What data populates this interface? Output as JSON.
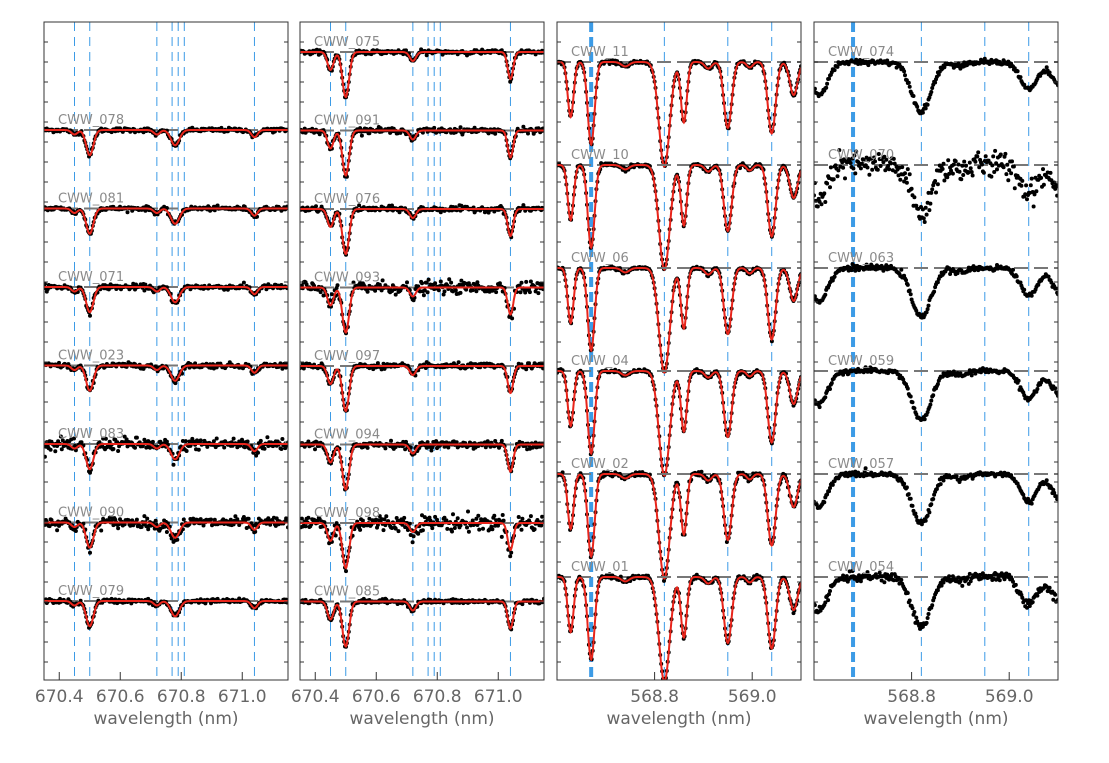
{
  "colors": {
    "frame": "#333333",
    "model": "#e8251b",
    "data": "#000000",
    "continuum": "#777777",
    "line_marker": "#3c9be6"
  },
  "chart_data": [
    {
      "type": "line",
      "xlabel": "wavelength (nm)",
      "xlim": [
        670.35,
        671.15
      ],
      "xticks": [
        670.4,
        670.6,
        670.8,
        671.0
      ],
      "xtick_labels": [
        "670.4",
        "670.6",
        "670.8",
        "671.0"
      ],
      "line_markers_nm": [
        670.45,
        670.5,
        670.72,
        670.77,
        670.79,
        670.81,
        671.04
      ],
      "model_shown": true,
      "stars": [
        "CWW_078",
        "CWW_081",
        "CWW_071",
        "CWW_023",
        "CWW_083",
        "CWW_090",
        "CWW_079"
      ],
      "noise": [
        0.012,
        0.012,
        0.015,
        0.015,
        0.035,
        0.03,
        0.012
      ],
      "absorption_lines": [
        {
          "center_nm": 670.5,
          "depth": 0.28,
          "sigma_nm": 0.012
        },
        {
          "center_nm": 670.78,
          "depth": 0.17,
          "sigma_nm": 0.014
        },
        {
          "center_nm": 670.72,
          "depth": 0.05,
          "sigma_nm": 0.01
        },
        {
          "center_nm": 671.04,
          "depth": 0.08,
          "sigma_nm": 0.01
        },
        {
          "center_nm": 670.45,
          "depth": 0.05,
          "sigma_nm": 0.01
        }
      ]
    },
    {
      "type": "line",
      "xlabel": "wavelength (nm)",
      "xlim": [
        670.35,
        671.15
      ],
      "xticks": [
        670.4,
        670.6,
        670.8,
        671.0
      ],
      "xtick_labels": [
        "670.4",
        "670.6",
        "670.8",
        "671.0"
      ],
      "line_markers_nm": [
        670.45,
        670.5,
        670.72,
        670.77,
        670.79,
        670.81,
        671.04
      ],
      "model_shown": true,
      "stars": [
        "CWW_075",
        "CWW_091",
        "CWW_076",
        "CWW_093",
        "CWW_097",
        "CWW_094",
        "CWW_098",
        "CWW_085"
      ],
      "noise": [
        0.012,
        0.015,
        0.015,
        0.035,
        0.015,
        0.02,
        0.045,
        0.012
      ],
      "absorption_lines": [
        {
          "center_nm": 670.5,
          "depth": 0.5,
          "sigma_nm": 0.011
        },
        {
          "center_nm": 670.45,
          "depth": 0.2,
          "sigma_nm": 0.01
        },
        {
          "center_nm": 670.72,
          "depth": 0.1,
          "sigma_nm": 0.01
        },
        {
          "center_nm": 671.04,
          "depth": 0.3,
          "sigma_nm": 0.009
        }
      ]
    },
    {
      "type": "line",
      "xlabel": "wavelength (nm)",
      "xlim": [
        568.6,
        569.1
      ],
      "xticks": [
        568.8,
        569.0
      ],
      "xtick_labels": [
        "568.8",
        "569.0"
      ],
      "line_markers_nm": [
        568.82,
        568.95,
        569.04
      ],
      "strong_marker_nm": 568.67,
      "model_shown": true,
      "stars": [
        "CWW_11",
        "CWW_10",
        "CWW_06",
        "CWW_04",
        "CWW_02",
        "CWW_01"
      ],
      "noise": [
        0.008,
        0.008,
        0.008,
        0.008,
        0.012,
        0.01
      ],
      "absorption_lines": [
        {
          "center_nm": 568.67,
          "depth": 0.75,
          "sigma_nm": 0.007
        },
        {
          "center_nm": 568.628,
          "depth": 0.5,
          "sigma_nm": 0.006
        },
        {
          "center_nm": 568.82,
          "depth": 0.95,
          "sigma_nm": 0.011
        },
        {
          "center_nm": 568.86,
          "depth": 0.55,
          "sigma_nm": 0.006
        },
        {
          "center_nm": 568.95,
          "depth": 0.6,
          "sigma_nm": 0.008
        },
        {
          "center_nm": 569.04,
          "depth": 0.65,
          "sigma_nm": 0.008
        },
        {
          "center_nm": 568.91,
          "depth": 0.06,
          "sigma_nm": 0.007
        },
        {
          "center_nm": 568.995,
          "depth": 0.05,
          "sigma_nm": 0.006
        },
        {
          "center_nm": 568.74,
          "depth": 0.04,
          "sigma_nm": 0.008
        },
        {
          "center_nm": 569.085,
          "depth": 0.3,
          "sigma_nm": 0.008
        }
      ]
    },
    {
      "type": "line",
      "xlabel": "wavelength (nm)",
      "xlim": [
        568.6,
        569.1
      ],
      "xticks": [
        568.8,
        569.0
      ],
      "xtick_labels": [
        "568.8",
        "569.0"
      ],
      "line_markers_nm": [
        568.82,
        568.95,
        569.04
      ],
      "strong_marker_nm": 568.68,
      "model_shown": false,
      "stars": [
        "CWW_074",
        "CWW_070",
        "CWW_063",
        "CWW_059",
        "CWW_057",
        "CWW_054"
      ],
      "noise": [
        0.012,
        0.06,
        0.012,
        0.012,
        0.012,
        0.02
      ],
      "absorption_lines": [
        {
          "center_nm": 568.82,
          "depth": 0.45,
          "sigma_nm": 0.02
        },
        {
          "center_nm": 569.04,
          "depth": 0.25,
          "sigma_nm": 0.017
        },
        {
          "center_nm": 568.61,
          "depth": 0.3,
          "sigma_nm": 0.018
        },
        {
          "center_nm": 568.9,
          "depth": 0.04,
          "sigma_nm": 0.015
        },
        {
          "center_nm": 569.11,
          "depth": 0.25,
          "sigma_nm": 0.02
        }
      ]
    }
  ]
}
